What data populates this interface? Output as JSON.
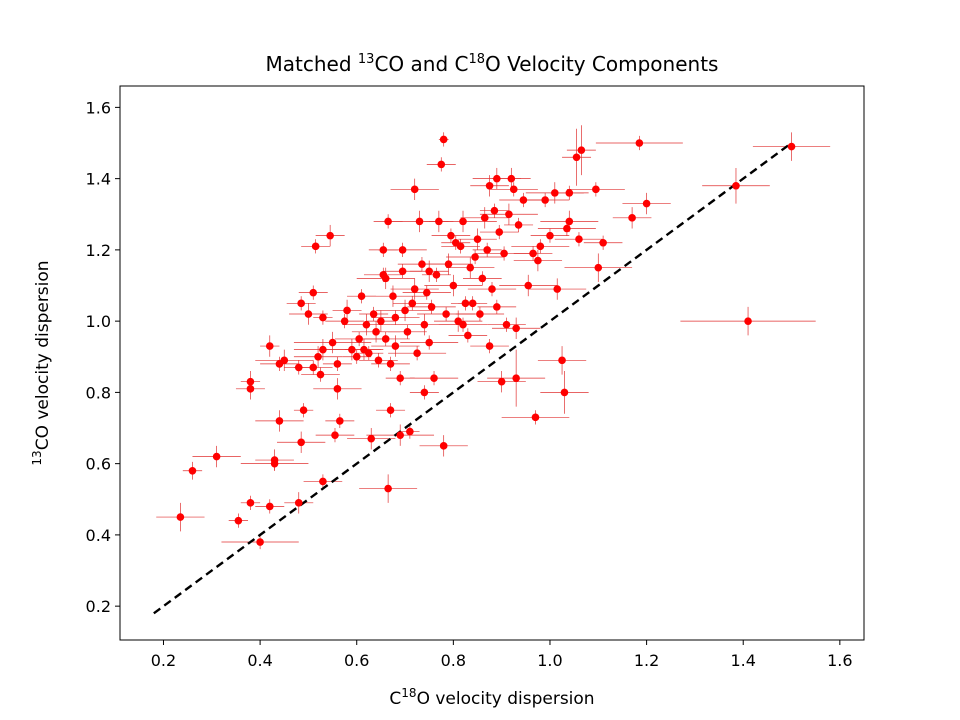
{
  "chart_data": {
    "type": "scatter",
    "title": {
      "before": "Matched ",
      "sup1": "13",
      "mid": "CO and C",
      "sup2": "18",
      "after": "O Velocity Components"
    },
    "xlabel": {
      "before": "C",
      "sup": "18",
      "after": "O velocity dispersion"
    },
    "ylabel": {
      "sup": "13",
      "after": "CO velocity dispersion"
    },
    "xlim": [
      0.11,
      1.65
    ],
    "ylim": [
      0.105,
      1.66
    ],
    "xticks": [
      "0.2",
      "0.4",
      "0.6",
      "0.8",
      "1.0",
      "1.2",
      "1.4",
      "1.6"
    ],
    "yticks": [
      "0.2",
      "0.4",
      "0.6",
      "0.8",
      "1.0",
      "1.2",
      "1.4",
      "1.6"
    ],
    "grid": false,
    "colors": {
      "points": "#ff0000",
      "errorbars": "#e03030",
      "reference": "#000000"
    },
    "reference_line": {
      "style": "dashed",
      "x": [
        0.18,
        1.5
      ],
      "y": [
        0.18,
        1.5
      ]
    },
    "series": [
      {
        "points": [
          [
            0.235,
            0.45,
            0.05,
            0.04
          ],
          [
            0.26,
            0.58,
            0.02,
            0.025
          ],
          [
            0.31,
            0.62,
            0.05,
            0.03
          ],
          [
            0.355,
            0.44,
            0.02,
            0.02
          ],
          [
            0.38,
            0.49,
            0.02,
            0.02
          ],
          [
            0.38,
            0.83,
            0.02,
            0.03
          ],
          [
            0.38,
            0.81,
            0.03,
            0.03
          ],
          [
            0.4,
            0.38,
            0.08,
            0.02
          ],
          [
            0.42,
            0.48,
            0.03,
            0.02
          ],
          [
            0.42,
            0.93,
            0.02,
            0.03
          ],
          [
            0.43,
            0.6,
            0.07,
            0.02
          ],
          [
            0.43,
            0.61,
            0.04,
            0.03
          ],
          [
            0.44,
            0.72,
            0.05,
            0.03
          ],
          [
            0.44,
            0.88,
            0.04,
            0.02
          ],
          [
            0.45,
            0.89,
            0.06,
            0.03
          ],
          [
            0.48,
            0.49,
            0.03,
            0.03
          ],
          [
            0.48,
            0.87,
            0.03,
            0.02
          ],
          [
            0.485,
            1.05,
            0.03,
            0.02
          ],
          [
            0.485,
            0.66,
            0.05,
            0.03
          ],
          [
            0.49,
            0.75,
            0.02,
            0.02
          ],
          [
            0.5,
            1.02,
            0.04,
            0.03
          ],
          [
            0.51,
            0.87,
            0.04,
            0.02
          ],
          [
            0.51,
            1.08,
            0.03,
            0.02
          ],
          [
            0.515,
            1.21,
            0.03,
            0.02
          ],
          [
            0.52,
            0.9,
            0.05,
            0.03
          ],
          [
            0.525,
            0.85,
            0.04,
            0.02
          ],
          [
            0.53,
            0.92,
            0.06,
            0.03
          ],
          [
            0.53,
            0.55,
            0.04,
            0.02
          ],
          [
            0.53,
            1.01,
            0.02,
            0.02
          ],
          [
            0.545,
            1.24,
            0.03,
            0.03
          ],
          [
            0.55,
            0.94,
            0.08,
            0.03
          ],
          [
            0.555,
            0.68,
            0.04,
            0.02
          ],
          [
            0.56,
            0.81,
            0.05,
            0.03
          ],
          [
            0.56,
            0.88,
            0.03,
            0.02
          ],
          [
            0.565,
            0.72,
            0.03,
            0.02
          ],
          [
            0.575,
            1.0,
            0.04,
            0.02
          ],
          [
            0.58,
            1.03,
            0.03,
            0.03
          ],
          [
            0.59,
            0.92,
            0.06,
            0.03
          ],
          [
            0.6,
            0.9,
            0.03,
            0.02
          ],
          [
            0.605,
            0.95,
            0.05,
            0.02
          ],
          [
            0.61,
            1.07,
            0.03,
            0.02
          ],
          [
            0.615,
            0.92,
            0.04,
            0.03
          ],
          [
            0.62,
            0.99,
            0.05,
            0.03
          ],
          [
            0.625,
            0.91,
            0.03,
            0.02
          ],
          [
            0.63,
            0.67,
            0.05,
            0.03
          ],
          [
            0.635,
            1.02,
            0.03,
            0.02
          ],
          [
            0.64,
            0.97,
            0.05,
            0.03
          ],
          [
            0.645,
            0.89,
            0.04,
            0.02
          ],
          [
            0.65,
            1.0,
            0.03,
            0.03
          ],
          [
            0.655,
            1.13,
            0.04,
            0.02
          ],
          [
            0.655,
            1.2,
            0.03,
            0.02
          ],
          [
            0.66,
            0.95,
            0.05,
            0.02
          ],
          [
            0.66,
            1.12,
            0.06,
            0.03
          ],
          [
            0.665,
            0.53,
            0.06,
            0.04
          ],
          [
            0.665,
            1.28,
            0.03,
            0.02
          ],
          [
            0.67,
            0.75,
            0.03,
            0.02
          ],
          [
            0.67,
            0.88,
            0.04,
            0.02
          ],
          [
            0.675,
            1.07,
            0.07,
            0.03
          ],
          [
            0.68,
            0.93,
            0.05,
            0.03
          ],
          [
            0.68,
            1.01,
            0.05,
            0.02
          ],
          [
            0.69,
            0.84,
            0.03,
            0.02
          ],
          [
            0.69,
            0.68,
            0.07,
            0.03
          ],
          [
            0.695,
            1.14,
            0.04,
            0.02
          ],
          [
            0.695,
            1.2,
            0.05,
            0.02
          ],
          [
            0.7,
            1.03,
            0.06,
            0.03
          ],
          [
            0.705,
            0.97,
            0.04,
            0.02
          ],
          [
            0.71,
            0.69,
            0.02,
            0.02
          ],
          [
            0.715,
            1.05,
            0.04,
            0.02
          ],
          [
            0.72,
            1.09,
            0.05,
            0.03
          ],
          [
            0.72,
            1.37,
            0.05,
            0.03
          ],
          [
            0.725,
            0.91,
            0.06,
            0.02
          ],
          [
            0.73,
            1.28,
            0.06,
            0.03
          ],
          [
            0.735,
            1.16,
            0.05,
            0.02
          ],
          [
            0.74,
            0.8,
            0.03,
            0.02
          ],
          [
            0.74,
            0.99,
            0.07,
            0.03
          ],
          [
            0.745,
            1.08,
            0.05,
            0.02
          ],
          [
            0.75,
            1.14,
            0.04,
            0.03
          ],
          [
            0.75,
            0.94,
            0.06,
            0.02
          ],
          [
            0.755,
            1.04,
            0.05,
            0.02
          ],
          [
            0.76,
            0.84,
            0.05,
            0.02
          ],
          [
            0.765,
            1.13,
            0.03,
            0.02
          ],
          [
            0.77,
            1.28,
            0.03,
            0.03
          ],
          [
            0.775,
            1.44,
            0.03,
            0.02
          ],
          [
            0.78,
            1.51,
            0.01,
            0.02
          ],
          [
            0.78,
            0.65,
            0.05,
            0.03
          ],
          [
            0.785,
            1.02,
            0.06,
            0.02
          ],
          [
            0.79,
            1.16,
            0.05,
            0.03
          ],
          [
            0.795,
            1.24,
            0.04,
            0.02
          ],
          [
            0.8,
            1.1,
            0.06,
            0.03
          ],
          [
            0.805,
            1.22,
            0.03,
            0.02
          ],
          [
            0.81,
            1.0,
            0.05,
            0.03
          ],
          [
            0.815,
            1.21,
            0.04,
            0.02
          ],
          [
            0.82,
            0.99,
            0.05,
            0.02
          ],
          [
            0.82,
            1.28,
            0.07,
            0.03
          ],
          [
            0.825,
            1.05,
            0.03,
            0.02
          ],
          [
            0.83,
            0.96,
            0.04,
            0.02
          ],
          [
            0.835,
            1.15,
            0.05,
            0.03
          ],
          [
            0.84,
            1.05,
            0.03,
            0.02
          ],
          [
            0.845,
            1.18,
            0.06,
            0.02
          ],
          [
            0.85,
            1.23,
            0.04,
            0.03
          ],
          [
            0.855,
            1.02,
            0.05,
            0.02
          ],
          [
            0.86,
            1.12,
            0.04,
            0.02
          ],
          [
            0.865,
            1.29,
            0.05,
            0.03
          ],
          [
            0.87,
            1.2,
            0.03,
            0.02
          ],
          [
            0.875,
            1.38,
            0.04,
            0.03
          ],
          [
            0.875,
            0.93,
            0.04,
            0.02
          ],
          [
            0.88,
            1.09,
            0.05,
            0.02
          ],
          [
            0.885,
            1.31,
            0.03,
            0.02
          ],
          [
            0.89,
            1.4,
            0.05,
            0.03
          ],
          [
            0.89,
            1.04,
            0.04,
            0.02
          ],
          [
            0.895,
            1.25,
            0.04,
            0.02
          ],
          [
            0.9,
            0.83,
            0.05,
            0.03
          ],
          [
            0.905,
            1.19,
            0.06,
            0.02
          ],
          [
            0.91,
            0.99,
            0.04,
            0.02
          ],
          [
            0.915,
            1.3,
            0.06,
            0.03
          ],
          [
            0.92,
            1.4,
            0.04,
            0.03
          ],
          [
            0.925,
            1.37,
            0.05,
            0.02
          ],
          [
            0.93,
            0.98,
            0.05,
            0.03
          ],
          [
            0.93,
            0.84,
            0.06,
            0.08
          ],
          [
            0.935,
            1.27,
            0.03,
            0.02
          ],
          [
            0.945,
            1.34,
            0.05,
            0.02
          ],
          [
            0.955,
            1.1,
            0.06,
            0.03
          ],
          [
            0.965,
            1.19,
            0.04,
            0.02
          ],
          [
            0.97,
            0.73,
            0.07,
            0.02
          ],
          [
            0.975,
            1.17,
            0.05,
            0.03
          ],
          [
            0.98,
            1.21,
            0.06,
            0.02
          ],
          [
            0.99,
            1.34,
            0.05,
            0.02
          ],
          [
            1.0,
            1.24,
            0.04,
            0.02
          ],
          [
            1.01,
            1.36,
            0.06,
            0.03
          ],
          [
            1.015,
            1.09,
            0.06,
            0.03
          ],
          [
            1.025,
            0.89,
            0.05,
            0.04
          ],
          [
            1.03,
            0.8,
            0.05,
            0.06
          ],
          [
            1.035,
            1.26,
            0.06,
            0.02
          ],
          [
            1.04,
            1.36,
            0.04,
            0.02
          ],
          [
            1.04,
            1.28,
            0.06,
            0.03
          ],
          [
            1.055,
            1.46,
            0.03,
            0.08
          ],
          [
            1.06,
            1.23,
            0.05,
            0.02
          ],
          [
            1.065,
            1.48,
            0.03,
            0.07
          ],
          [
            1.095,
            1.37,
            0.06,
            0.02
          ],
          [
            1.1,
            1.15,
            0.07,
            0.04
          ],
          [
            1.11,
            1.22,
            0.04,
            0.02
          ],
          [
            1.17,
            1.29,
            0.04,
            0.03
          ],
          [
            1.185,
            1.5,
            0.09,
            0.02
          ],
          [
            1.2,
            1.33,
            0.05,
            0.03
          ],
          [
            1.385,
            1.38,
            0.07,
            0.05
          ],
          [
            1.41,
            1.0,
            0.14,
            0.04
          ],
          [
            1.5,
            1.49,
            0.08,
            0.04
          ]
        ]
      }
    ]
  }
}
